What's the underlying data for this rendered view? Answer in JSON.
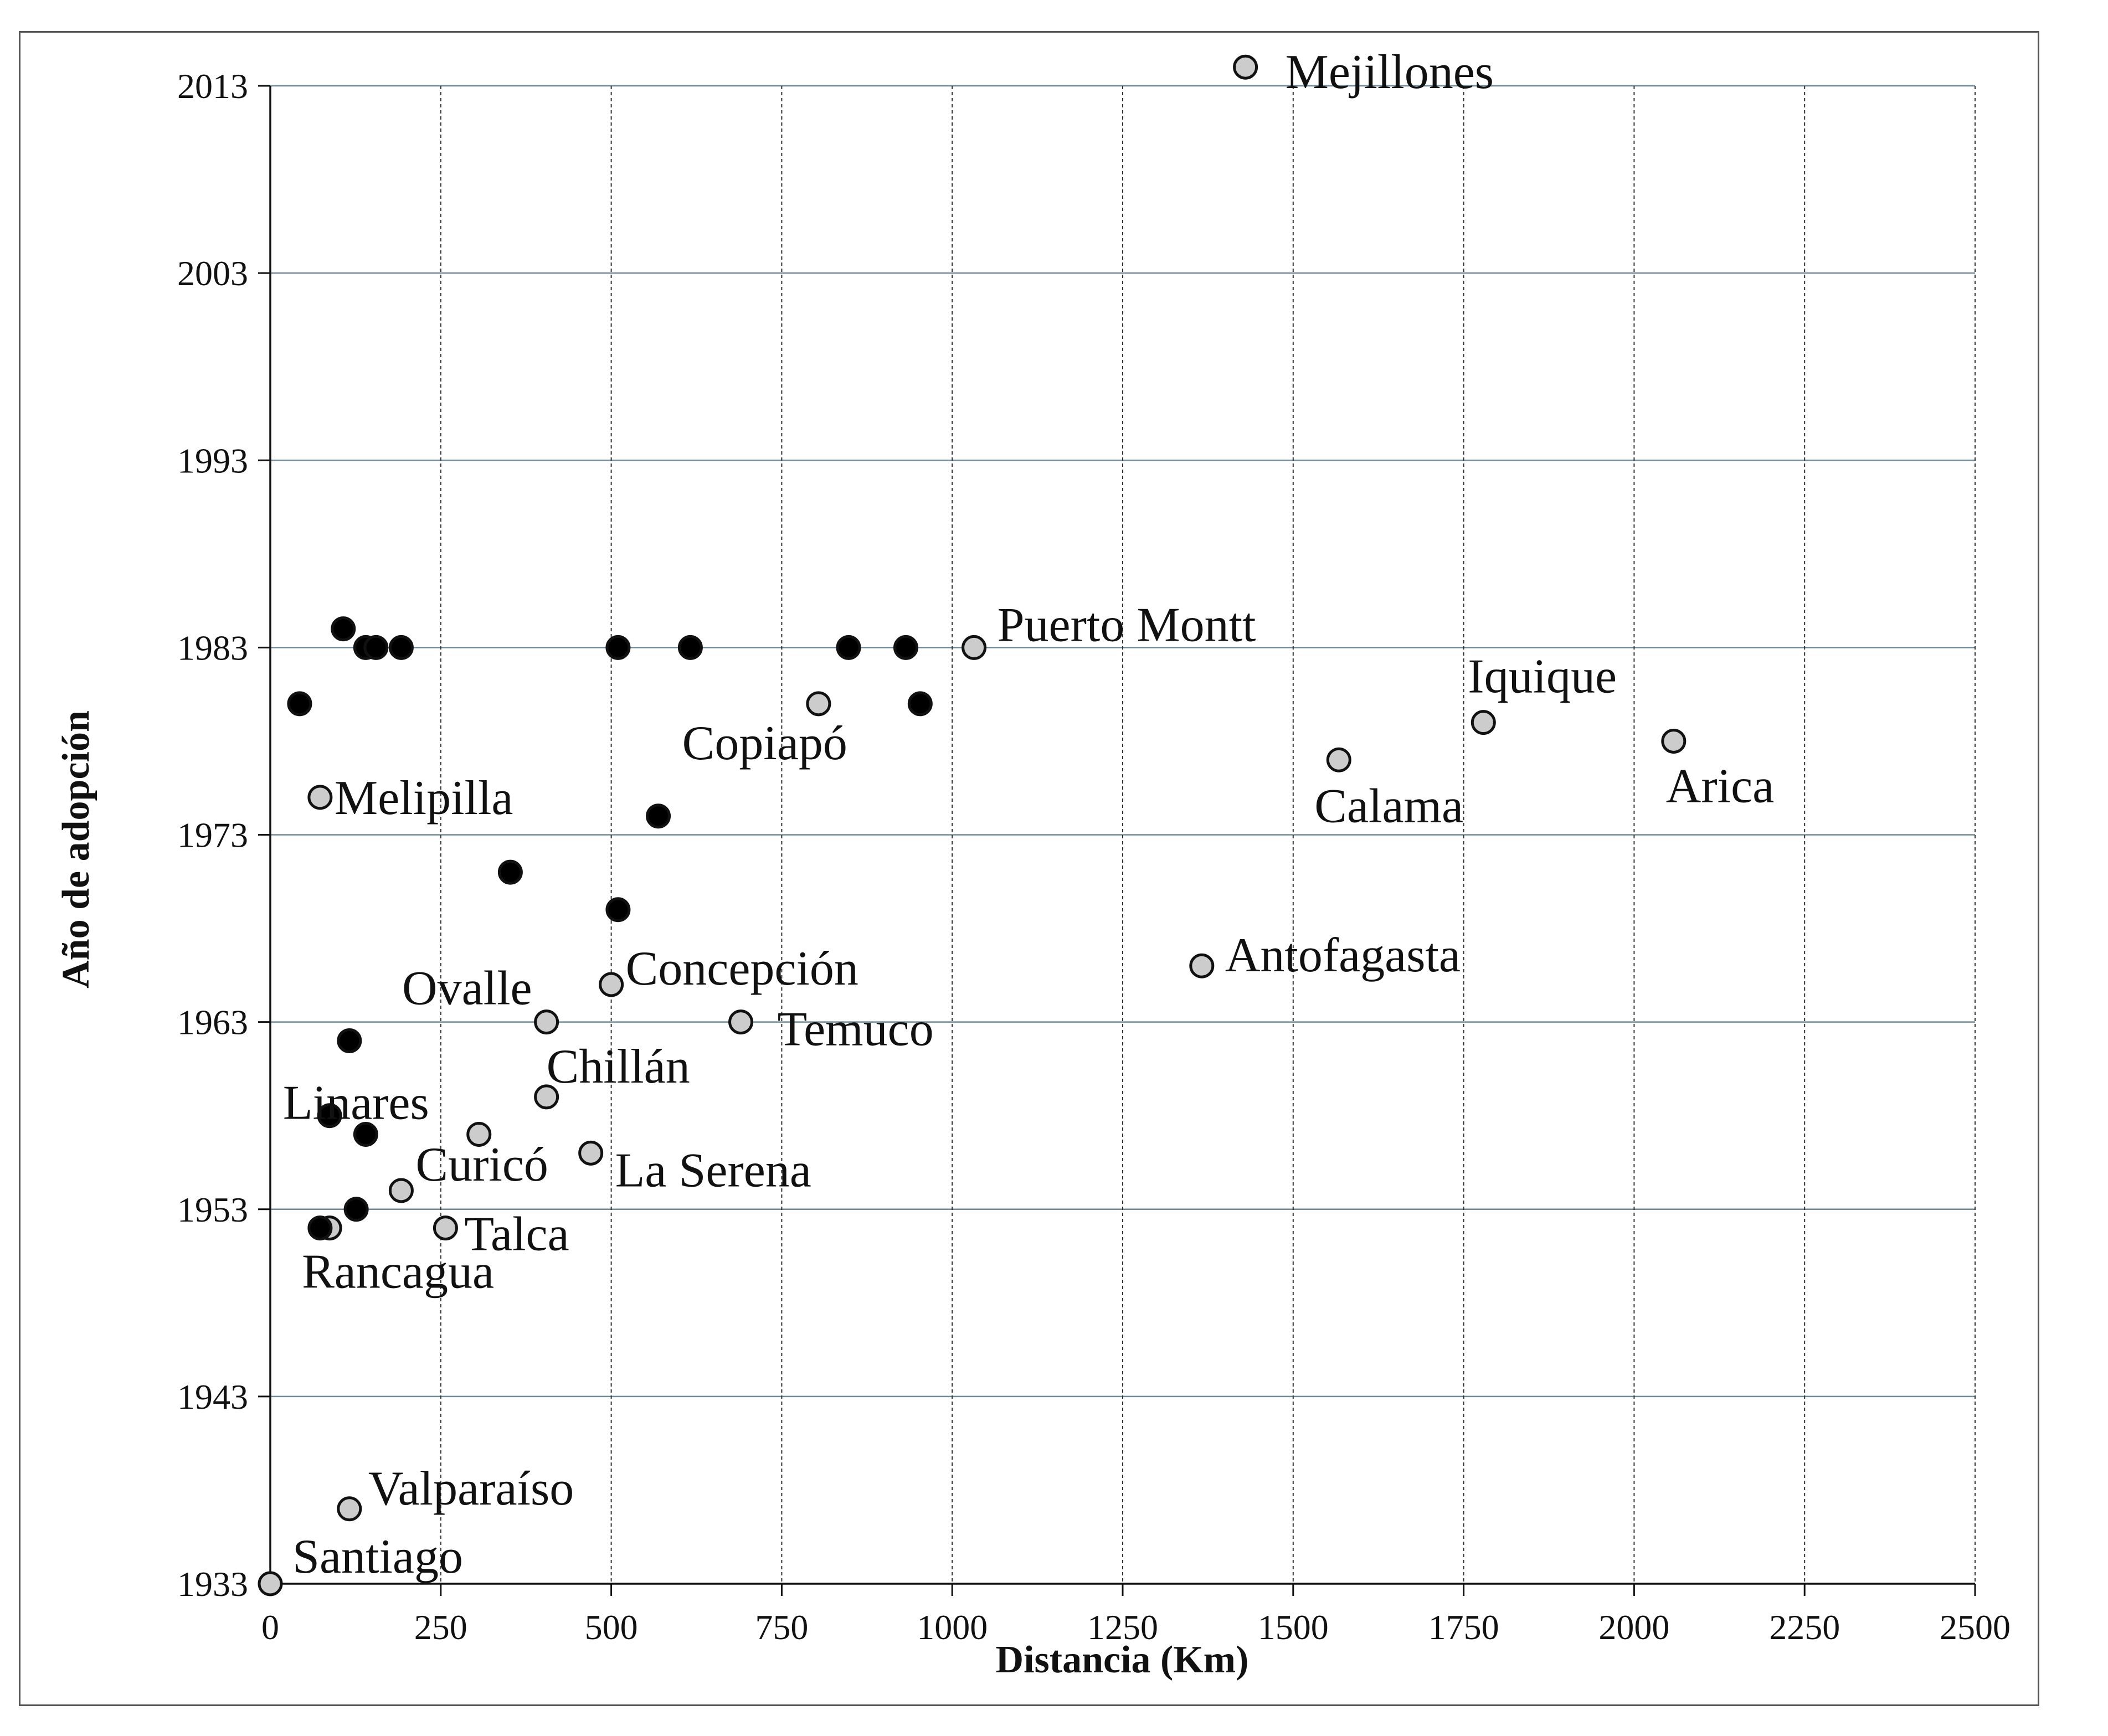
{
  "chart_data": {
    "type": "scatter",
    "xlabel": "Distancia (Km)",
    "ylabel": "Año de adopción",
    "xlim": [
      0,
      2500
    ],
    "ylim": [
      1933,
      2013
    ],
    "x_ticks": [
      0,
      250,
      500,
      750,
      1000,
      1250,
      1500,
      1750,
      2000,
      2250,
      2500
    ],
    "y_ticks": [
      1933,
      1943,
      1953,
      1963,
      1973,
      1983,
      1993,
      2003,
      2013
    ],
    "grid": true,
    "colors": {
      "labeled_points": "#cccccc",
      "unlabeled_points": "#000000",
      "horizontal_grid": "#6f8a99",
      "vertical_grid": "#333333"
    },
    "series": [
      {
        "points": [
          {
            "x": 0,
            "y": 1933,
            "label": "Santiago"
          },
          {
            "x": 116,
            "y": 1937,
            "label": "Valparaíso"
          },
          {
            "x": 87,
            "y": 1952,
            "label": "Rancagua"
          },
          {
            "x": 257,
            "y": 1952,
            "label": "Talca"
          },
          {
            "x": 192,
            "y": 1954,
            "label": "Curicó"
          },
          {
            "x": 306,
            "y": 1957,
            "label": "Linares"
          },
          {
            "x": 470,
            "y": 1956,
            "label": "La Serena"
          },
          {
            "x": 405,
            "y": 1959,
            "label": "Chillán"
          },
          {
            "x": 405,
            "y": 1963,
            "label": "Ovalle"
          },
          {
            "x": 500,
            "y": 1965,
            "label": "Concepción"
          },
          {
            "x": 690,
            "y": 1963,
            "label": "Temuco"
          },
          {
            "x": 73,
            "y": 1975,
            "label": "Melipilla"
          },
          {
            "x": 804,
            "y": 1980,
            "label": "Copiapó"
          },
          {
            "x": 1032,
            "y": 1983,
            "label": "Puerto Montt"
          },
          {
            "x": 1366,
            "y": 1966,
            "label": "Antofagasta"
          },
          {
            "x": 1567,
            "y": 1977,
            "label": "Calama"
          },
          {
            "x": 1779,
            "y": 1979,
            "label": "Iquique"
          },
          {
            "x": 2058,
            "y": 1978,
            "label": "Arica"
          },
          {
            "x": 1430,
            "y": 2014,
            "label": "Mejillones"
          }
        ]
      },
      {
        "points": [
          {
            "x": 43,
            "y": 1980
          },
          {
            "x": 107,
            "y": 1984
          },
          {
            "x": 140,
            "y": 1983
          },
          {
            "x": 155,
            "y": 1983
          },
          {
            "x": 192,
            "y": 1983
          },
          {
            "x": 510,
            "y": 1983
          },
          {
            "x": 616,
            "y": 1983
          },
          {
            "x": 848,
            "y": 1983
          },
          {
            "x": 932,
            "y": 1983
          },
          {
            "x": 953,
            "y": 1980
          },
          {
            "x": 569,
            "y": 1974
          },
          {
            "x": 352,
            "y": 1971
          },
          {
            "x": 510,
            "y": 1969
          },
          {
            "x": 116,
            "y": 1962
          },
          {
            "x": 87,
            "y": 1958
          },
          {
            "x": 140,
            "y": 1957
          },
          {
            "x": 126,
            "y": 1953
          },
          {
            "x": 73,
            "y": 1952
          }
        ]
      }
    ]
  }
}
